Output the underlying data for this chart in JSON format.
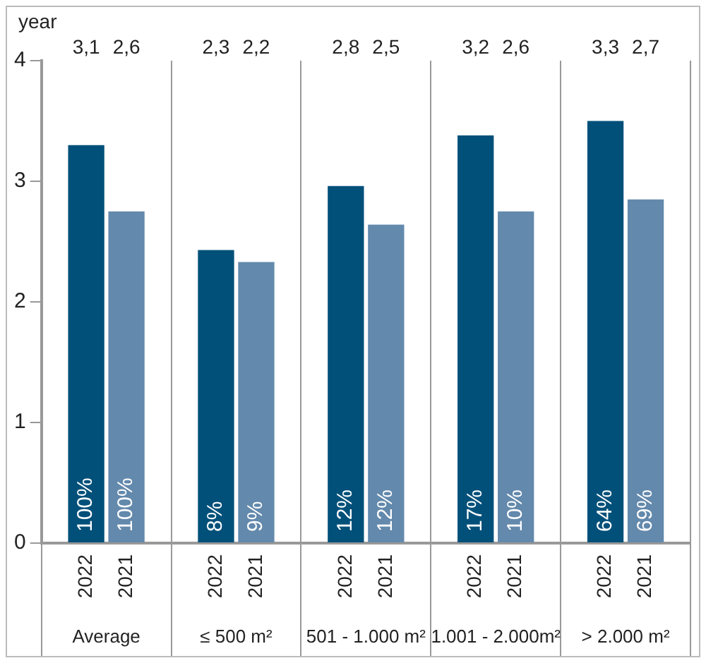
{
  "chart_data": {
    "type": "bar",
    "ylabel": "year",
    "categories": [
      "Average",
      "≤ 500 m²",
      "501 - 1.000 m²",
      "1.001 - 2.000m²",
      "> 2.000 m²"
    ],
    "series": [
      {
        "name": "2022",
        "color": "#00507a",
        "values": [
          3.3,
          2.43,
          2.96,
          3.38,
          3.5
        ]
      },
      {
        "name": "2021",
        "color": "#6389ac",
        "values": [
          2.75,
          2.33,
          2.64,
          2.75,
          2.85
        ]
      }
    ],
    "ylim": [
      0,
      4
    ],
    "yticks": [
      0,
      1,
      2,
      3,
      4
    ],
    "grid": "x",
    "legend": false,
    "annotations": [
      "3,1",
      "2,6",
      "2,3",
      "2,2",
      "2,8",
      "2,5",
      "3,2",
      "2,6",
      "3,3",
      "2,7",
      "100%",
      "100%",
      "8%",
      "9%",
      "12%",
      "12%",
      "17%",
      "10%",
      "64%",
      "69%"
    ]
  }
}
